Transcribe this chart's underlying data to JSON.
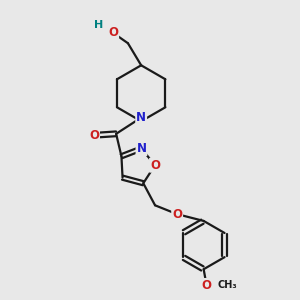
{
  "background_color": "#e8e8e8",
  "bond_color": "#1a1a1a",
  "bond_width": 1.6,
  "N_color": "#2020cc",
  "O_color": "#cc2020",
  "H_color": "#008080",
  "font_size_atom": 8.5,
  "fig_width": 3.0,
  "fig_height": 3.0,
  "dpi": 100,
  "xlim": [
    0,
    10
  ],
  "ylim": [
    0,
    10
  ]
}
